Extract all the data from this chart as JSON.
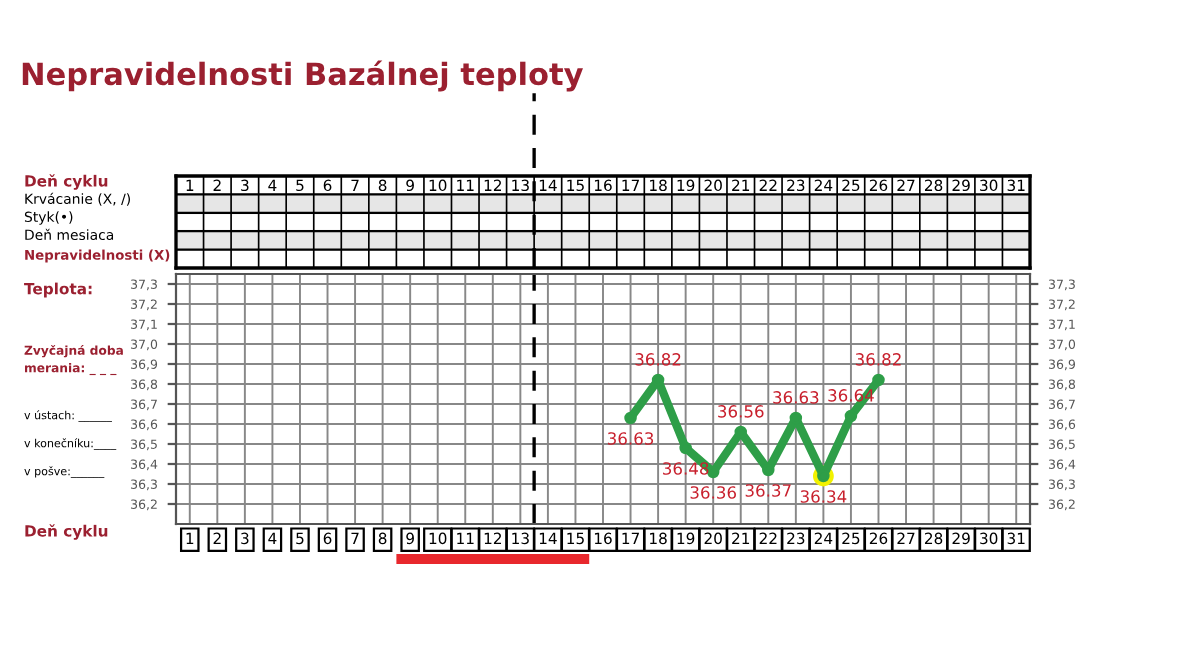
{
  "chart_data": {
    "type": "line",
    "title": "Nepravidelnosti Bazálnej teploty",
    "x": [
      17,
      18,
      19,
      20,
      21,
      22,
      23,
      24,
      25,
      26
    ],
    "series": [
      {
        "color": "#2e9e48",
        "values": [
          36.63,
          36.82,
          36.48,
          36.36,
          36.56,
          36.37,
          36.63,
          36.34,
          36.64,
          36.82
        ]
      }
    ],
    "data_labels": true,
    "marker": "circle",
    "xlim": [
      0.5,
      31.5
    ],
    "xticks": [
      1,
      2,
      3,
      4,
      5,
      6,
      7,
      8,
      9,
      10,
      11,
      12,
      13,
      14,
      15,
      16,
      17,
      18,
      19,
      20,
      21,
      22,
      23,
      24,
      25,
      26,
      27,
      28,
      29,
      30,
      31
    ],
    "x2lim": [
      0.5,
      31.5
    ],
    "x2ticks": [
      1,
      2,
      3,
      4,
      5,
      6,
      7,
      8,
      9,
      10,
      11,
      12,
      13,
      14,
      15,
      16,
      17,
      18,
      19,
      20,
      21,
      22,
      23,
      24,
      25,
      26,
      27,
      28,
      29,
      30,
      31
    ],
    "ylim": [
      36.1,
      37.35
    ],
    "yticks": [
      {
        "value": 36.2,
        "label": "36,2"
      },
      {
        "value": 36.3,
        "label": "36,3"
      },
      {
        "value": 36.4,
        "label": "36,4"
      },
      {
        "value": 36.5,
        "label": "36,5"
      },
      {
        "value": 36.6,
        "label": "36,6"
      },
      {
        "value": 36.7,
        "label": "36,7"
      },
      {
        "value": 36.8,
        "label": "36,8"
      },
      {
        "value": 36.9,
        "label": "36,9"
      },
      {
        "value": 37.0,
        "label": "37,0"
      },
      {
        "value": 37.1,
        "label": "37,1"
      },
      {
        "value": 37.2,
        "label": "37,2"
      },
      {
        "value": 37.3,
        "label": "37,3"
      }
    ],
    "grid": true,
    "ref_lines": [
      {
        "axis": "x",
        "value": 13.5,
        "color": "#000000",
        "line_style": "dashed"
      }
    ],
    "annotations": [
      "Deň cyklu",
      "Krvácanie (X, /)",
      "Styk(•)",
      "Deň mesiaca",
      "Nepravidelnosti (X)",
      "Teplota:",
      "Zvyčajná doba merania: _ _ _",
      "v ústach: ______",
      "v konečníku:____",
      "v pošve:______",
      "Deň cyklu"
    ]
  }
}
